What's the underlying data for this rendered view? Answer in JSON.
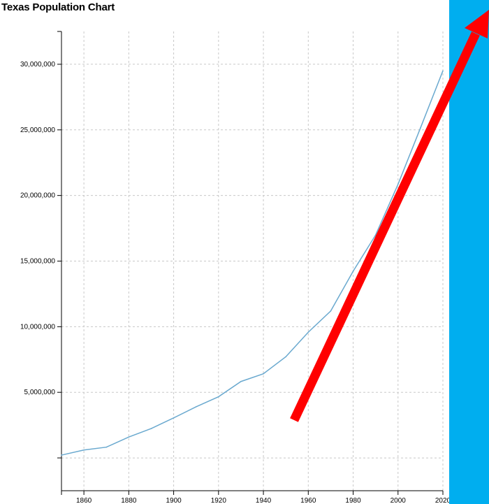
{
  "page": {
    "background_color": "#00aeef",
    "panel_color": "#ffffff"
  },
  "chart_data": {
    "type": "line",
    "title": "Texas Population Chart",
    "xlabel": "",
    "ylabel": "",
    "x_ticks": [
      1860,
      1880,
      1900,
      1920,
      1940,
      1960,
      1980,
      2000,
      2020
    ],
    "y_ticks": [
      5000000,
      10000000,
      15000000,
      20000000,
      25000000,
      30000000
    ],
    "y_tick_labels": [
      "5,000,000",
      "10,000,000",
      "15,000,000",
      "20,000,000",
      "25,000,000",
      "30,000,000"
    ],
    "xlim": [
      1850,
      2020
    ],
    "ylim": [
      -2500000,
      32500000
    ],
    "grid": true,
    "series": [
      {
        "color": "#6aa9cf",
        "x": [
          1850,
          1860,
          1870,
          1880,
          1890,
          1900,
          1910,
          1920,
          1930,
          1940,
          1950,
          1960,
          1970,
          1980,
          1990,
          2000,
          2010,
          2020
        ],
        "y": [
          212592,
          604215,
          818579,
          1591749,
          2235527,
          3048710,
          3896542,
          4663228,
          5824715,
          6414824,
          7711194,
          9579677,
          11196730,
          14229191,
          16986510,
          20851820,
          25145561,
          29500000
        ]
      }
    ]
  },
  "annotation": {
    "type": "arrow",
    "color": "#ff0000"
  }
}
